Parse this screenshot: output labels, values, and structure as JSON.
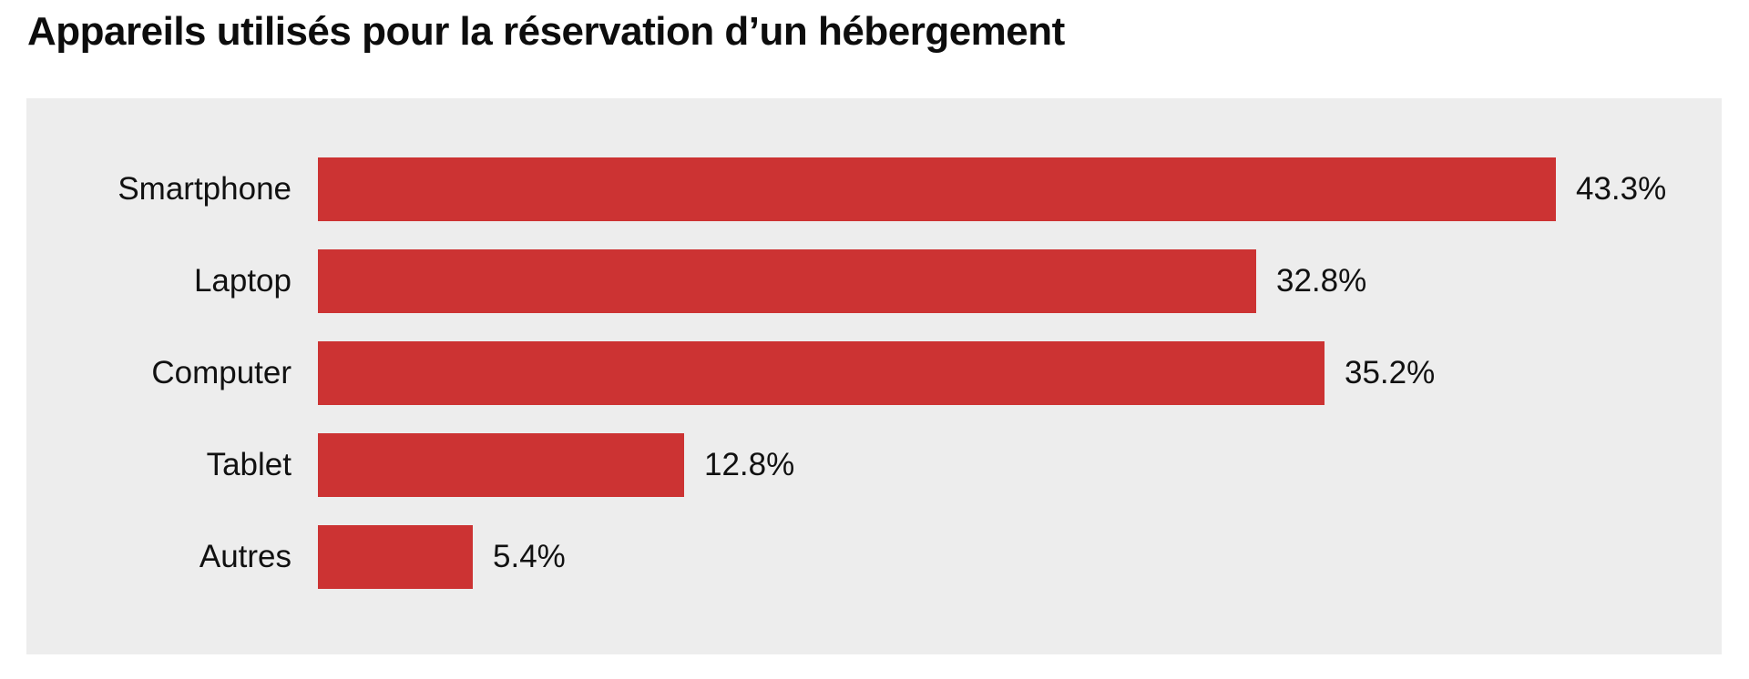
{
  "title": "Appareils utilisés pour la réservation d’un hébergement",
  "chart_data": {
    "type": "bar",
    "orientation": "horizontal",
    "title": "Appareils utilisés pour la réservation d’un hébergement",
    "categories": [
      "Smartphone",
      "Laptop",
      "Computer",
      "Tablet",
      "Autres"
    ],
    "values": [
      43.3,
      32.8,
      35.2,
      12.8,
      5.4
    ],
    "value_labels": [
      "43.3%",
      "32.8%",
      "35.2%",
      "12.8%",
      "5.4%"
    ],
    "unit": "%",
    "xlim": [
      0,
      49
    ],
    "grid": false,
    "legend": false,
    "bar_color": "#cc3333",
    "panel_background": "#ededed",
    "text_color": "#111111"
  }
}
